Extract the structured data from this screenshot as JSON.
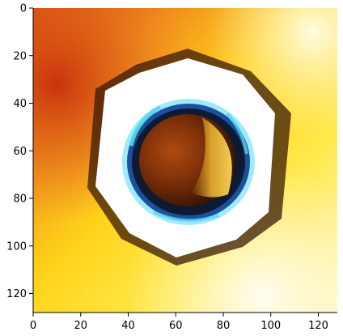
{
  "figure": {
    "image_description_icon": "hex-nut-heatmap-image",
    "colors": {
      "axis": "#000000",
      "hot_red": "#d23a10",
      "orange": "#f08a1e",
      "yellow": "#ffe000",
      "pale_yellow": "#fff3a8",
      "white": "#ffffff",
      "cyan": "#52d6f0",
      "blue": "#1c4fa0",
      "dark": "#1a0d05",
      "core_brown": "#7a2e08",
      "core_gold": "#e0a020"
    }
  },
  "chart_data": {
    "type": "heatmap",
    "title": "",
    "xlabel": "",
    "ylabel": "",
    "xlim": [
      0,
      128
    ],
    "ylim": [
      128,
      0
    ],
    "x_ticks": [
      0,
      20,
      40,
      60,
      80,
      100,
      120
    ],
    "y_ticks": [
      0,
      20,
      40,
      60,
      80,
      100,
      120
    ],
    "x_tick_labels": [
      "0",
      "20",
      "40",
      "60",
      "80",
      "100",
      "120"
    ],
    "y_tick_labels": [
      "0",
      "20",
      "40",
      "60",
      "80",
      "100",
      "120"
    ],
    "grid": false,
    "legend": "none"
  }
}
